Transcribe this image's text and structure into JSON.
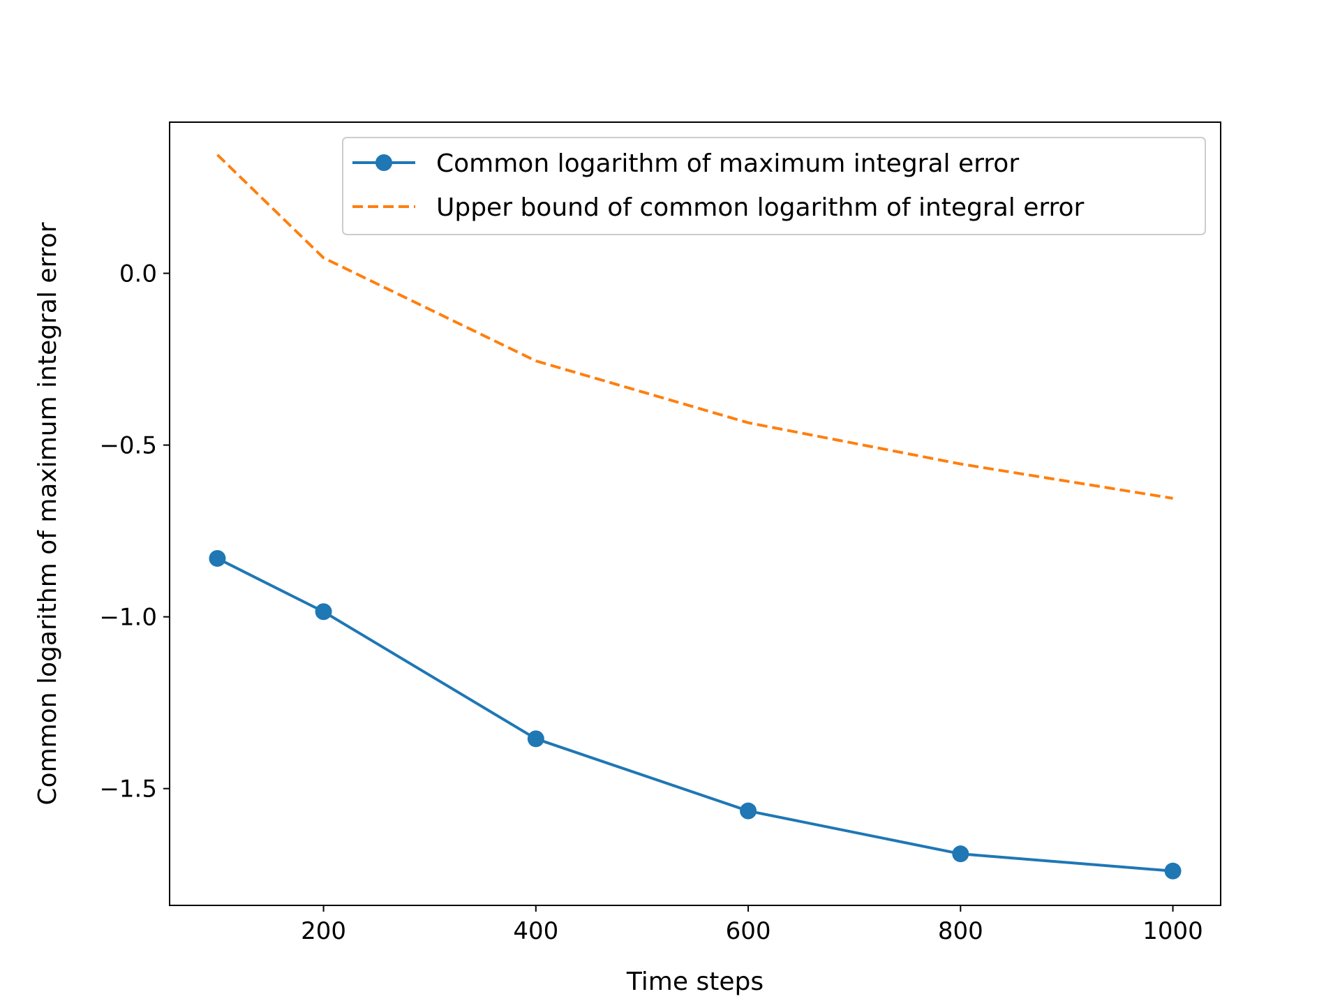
{
  "chart_data": {
    "type": "line",
    "title": "",
    "xlabel": "Time steps",
    "ylabel": "Common logarithm of maximum integral error",
    "x": [
      100,
      200,
      400,
      600,
      800,
      1000
    ],
    "xlim": [
      55,
      1045
    ],
    "ylim": [
      -1.84,
      0.44
    ],
    "xticks": [
      200,
      400,
      600,
      800,
      1000
    ],
    "xtick_labels": [
      "200",
      "400",
      "600",
      "800",
      "1000"
    ],
    "yticks": [
      0.0,
      -0.5,
      -1.0,
      -1.5
    ],
    "ytick_labels": [
      "0.0",
      "−0.5",
      "−1.0",
      "−1.5"
    ],
    "grid": false,
    "legend_position": "top-right",
    "series": [
      {
        "name": "Common logarithm of maximum integral error",
        "values": [
          -0.83,
          -0.985,
          -1.355,
          -1.565,
          -1.69,
          -1.74
        ],
        "color": "#1f77b4",
        "style": "solid",
        "marker": "circle"
      },
      {
        "name": "Upper bound of common logarithm of integral error",
        "values": [
          0.345,
          0.045,
          -0.255,
          -0.435,
          -0.555,
          -0.655
        ],
        "color": "#ff7f0e",
        "style": "dashed",
        "marker": "none"
      }
    ]
  }
}
